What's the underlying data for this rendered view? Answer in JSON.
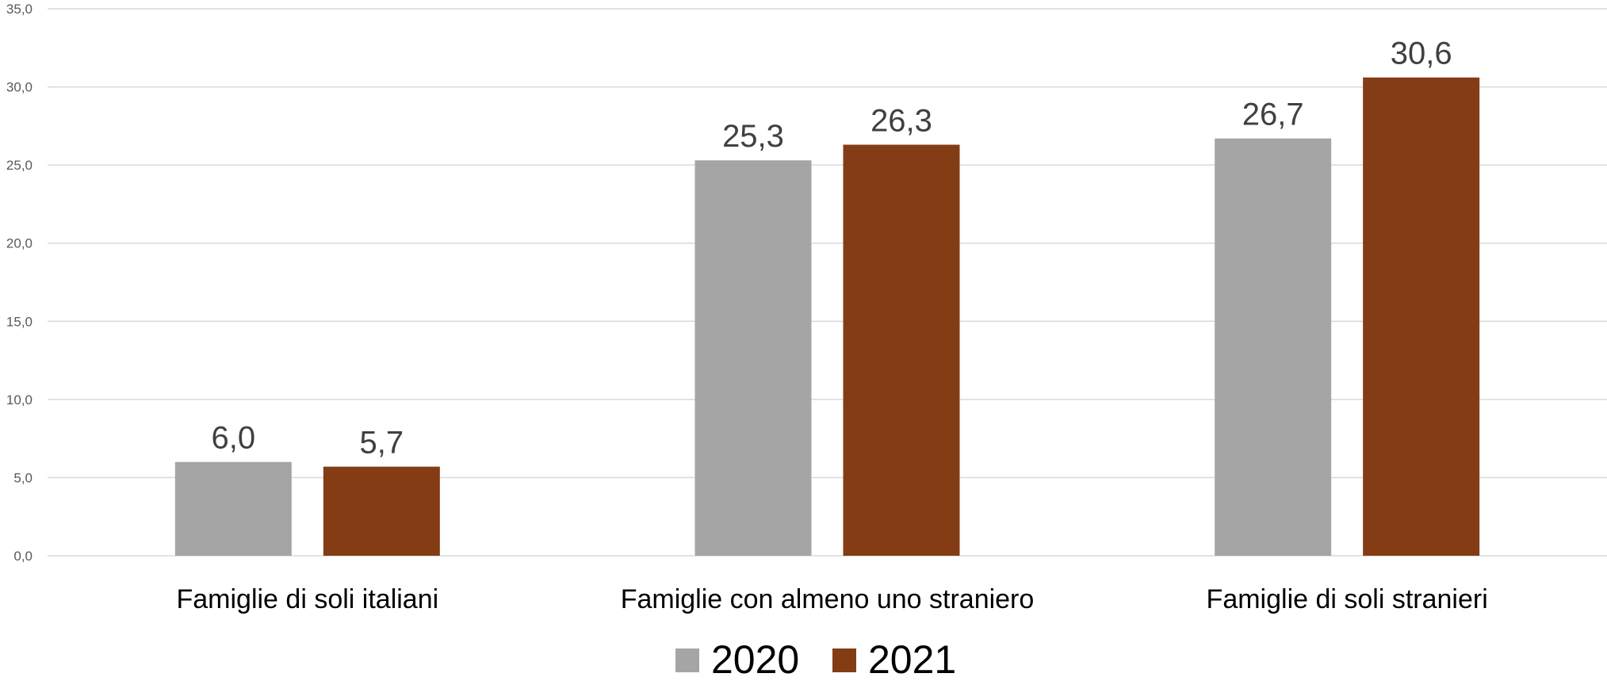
{
  "chart_data": {
    "type": "bar",
    "categories": [
      "Famiglie di soli italiani",
      "Famiglie con almeno uno straniero",
      "Famiglie di soli stranieri"
    ],
    "series": [
      {
        "name": "2020",
        "values": [
          6.0,
          25.3,
          26.7
        ],
        "labels": [
          "6,0",
          "25,3",
          "26,7"
        ],
        "color": "#a5a5a5"
      },
      {
        "name": "2021",
        "values": [
          5.7,
          26.3,
          30.6
        ],
        "labels": [
          "5,7",
          "26,3",
          "30,6"
        ],
        "color": "#843c15"
      }
    ],
    "yticks": [
      "0,0",
      "5,0",
      "10,0",
      "15,0",
      "20,0",
      "25,0",
      "30,0",
      "35,0"
    ],
    "ylim": [
      0,
      35
    ],
    "grid": true,
    "legend": "bottom-center"
  }
}
